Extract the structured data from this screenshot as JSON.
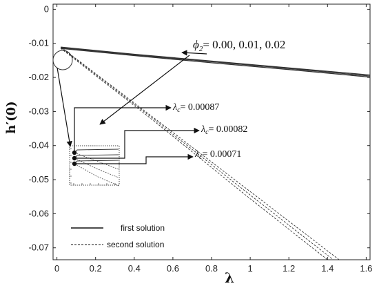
{
  "chart_data": {
    "type": "line",
    "xlabel": "λ",
    "ylabel": "h′(0)",
    "xlim": [
      -0.02,
      1.62
    ],
    "ylim": [
      -0.0735,
      0.0015
    ],
    "x_ticks": [
      "0",
      "0.2",
      "0.4",
      "0.6",
      "0.8",
      "1",
      "1.2",
      "1.4",
      "1.6"
    ],
    "y_ticks": [
      "0",
      "-0.01",
      "-0.02",
      "-0.03",
      "-0.04",
      "-0.05",
      "-0.06",
      "-0.07"
    ],
    "series": [
      {
        "name": "first solution",
        "group": "first",
        "x": [
          0.02,
          0.4,
          0.8,
          1.2,
          1.62
        ],
        "y": [
          -0.0111,
          -0.0132,
          -0.0152,
          -0.0172,
          -0.0193
        ]
      },
      {
        "name": "first solution",
        "group": "first",
        "x": [
          0.02,
          0.4,
          0.8,
          1.2,
          1.62
        ],
        "y": [
          -0.0113,
          -0.0134,
          -0.0154,
          -0.0174,
          -0.0196
        ]
      },
      {
        "name": "first solution",
        "group": "first",
        "x": [
          0.02,
          0.4,
          0.8,
          1.2,
          1.62
        ],
        "y": [
          -0.0115,
          -0.0136,
          -0.0157,
          -0.0177,
          -0.0199
        ]
      },
      {
        "name": "second solution",
        "group": "second",
        "x": [
          0.02,
          0.5,
          1.0,
          1.46
        ],
        "y": [
          -0.0111,
          -0.0318,
          -0.0535,
          -0.0735
        ]
      },
      {
        "name": "second solution",
        "group": "second",
        "x": [
          0.02,
          0.5,
          1.0,
          1.43
        ],
        "y": [
          -0.0113,
          -0.0322,
          -0.0545,
          -0.0735
        ]
      },
      {
        "name": "second solution",
        "group": "second",
        "x": [
          0.02,
          0.5,
          1.0,
          1.4
        ],
        "y": [
          -0.0115,
          -0.0327,
          -0.0556,
          -0.0735
        ]
      }
    ],
    "annotations": {
      "phi_label": "ϕ",
      "phi_sub": "2",
      "phi_values": "= 0.00, 0.01, 0.02",
      "lambda_c": [
        {
          "sym": "λ",
          "sub": "c",
          "value": "= 0.00087"
        },
        {
          "sym": "λ",
          "sub": "c",
          "value": "= 0.00082"
        },
        {
          "sym": "λ",
          "sub": "c",
          "value": "= 0.00071"
        }
      ]
    },
    "legend": {
      "position": "bottom-left",
      "entries": [
        {
          "label": "first solution",
          "style": "solid"
        },
        {
          "label": "second solution",
          "style": "dashed"
        }
      ]
    },
    "grid": false,
    "colors": {
      "lines": "#333333",
      "axes": "#111111"
    }
  }
}
